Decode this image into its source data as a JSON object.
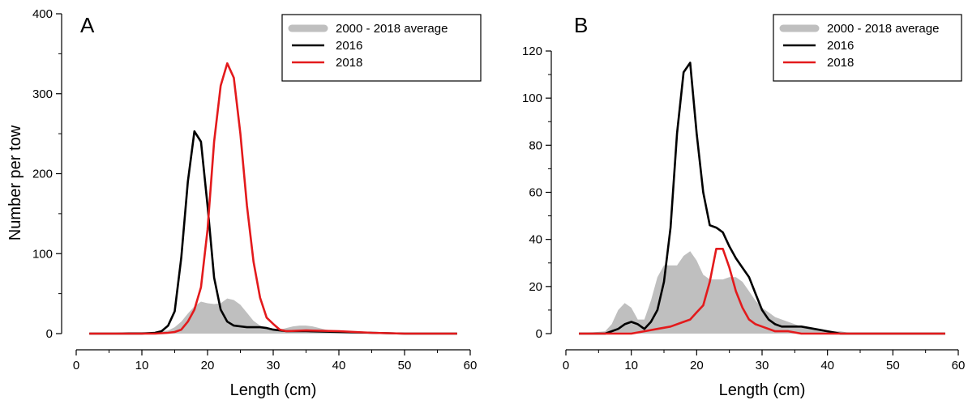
{
  "chart_data": [
    {
      "type": "area",
      "panel_label": "A",
      "xlabel": "Length (cm)",
      "ylabel": "Number per tow",
      "xlim": [
        0,
        60
      ],
      "ylim": [
        0,
        400
      ],
      "xticks": [
        0,
        10,
        20,
        30,
        40,
        50,
        60
      ],
      "yticks": [
        0,
        100,
        200,
        300,
        400
      ],
      "legend_position": "top-right",
      "series": [
        {
          "name": "2000 - 2018 average",
          "kind": "area",
          "color": "#bfbfbf",
          "x": [
            2,
            6,
            8,
            10,
            12,
            14,
            15,
            16,
            17,
            18,
            19,
            20,
            21,
            22,
            23,
            24,
            25,
            26,
            27,
            28,
            29,
            30,
            31,
            32,
            33,
            34,
            35,
            36,
            37,
            38,
            40,
            42,
            44,
            46,
            50,
            58
          ],
          "y": [
            0,
            1,
            2,
            2,
            2,
            4,
            8,
            15,
            25,
            34,
            40,
            38,
            37,
            38,
            44,
            42,
            36,
            26,
            16,
            10,
            6,
            4,
            5,
            7,
            9,
            10,
            10,
            9,
            7,
            5,
            3,
            2,
            1,
            0,
            0,
            0
          ]
        },
        {
          "name": "2016",
          "kind": "line",
          "color": "#000000",
          "x": [
            2,
            10,
            12,
            13,
            14,
            15,
            16,
            17,
            18,
            19,
            20,
            21,
            22,
            23,
            24,
            25,
            26,
            27,
            28,
            29,
            30,
            32,
            35,
            40,
            45,
            50,
            58
          ],
          "y": [
            0,
            0,
            1,
            3,
            10,
            28,
            95,
            190,
            253,
            240,
            160,
            70,
            30,
            15,
            10,
            9,
            8,
            8,
            8,
            7,
            5,
            3,
            3,
            2,
            1,
            0,
            0
          ]
        },
        {
          "name": "2018",
          "kind": "line",
          "color": "#e31a1c",
          "x": [
            2,
            12,
            14,
            15,
            16,
            17,
            18,
            19,
            20,
            21,
            22,
            23,
            24,
            25,
            26,
            27,
            28,
            29,
            30,
            31,
            32,
            35,
            40,
            45,
            50,
            58
          ],
          "y": [
            0,
            0,
            1,
            2,
            5,
            15,
            30,
            58,
            130,
            240,
            310,
            338,
            320,
            250,
            160,
            90,
            45,
            20,
            12,
            5,
            3,
            4,
            3,
            1,
            0,
            0
          ]
        }
      ]
    },
    {
      "type": "area",
      "panel_label": "B",
      "xlabel": "Length (cm)",
      "ylabel": "",
      "xlim": [
        0,
        60
      ],
      "ylim": [
        0,
        135
      ],
      "xticks": [
        0,
        10,
        20,
        30,
        40,
        50,
        60
      ],
      "yticks": [
        0,
        20,
        40,
        60,
        80,
        100,
        120
      ],
      "legend_position": "top-right",
      "series": [
        {
          "name": "2000 - 2018 average",
          "kind": "area",
          "color": "#bfbfbf",
          "x": [
            2,
            6,
            7,
            8,
            9,
            10,
            11,
            12,
            13,
            14,
            15,
            16,
            17,
            18,
            19,
            20,
            21,
            22,
            23,
            24,
            25,
            26,
            27,
            28,
            29,
            30,
            31,
            32,
            34,
            36,
            38,
            40,
            42,
            44,
            46,
            50,
            58
          ],
          "y": [
            0,
            1,
            4,
            10,
            13,
            11,
            6,
            6,
            14,
            24,
            29,
            29,
            29,
            33,
            35,
            31,
            25,
            23,
            23,
            23,
            24,
            24,
            22,
            18,
            14,
            11,
            9,
            7,
            5,
            3,
            2,
            1,
            1,
            0,
            0,
            0,
            0
          ]
        },
        {
          "name": "2016",
          "kind": "line",
          "color": "#000000",
          "x": [
            2,
            6,
            7,
            8,
            9,
            10,
            11,
            12,
            13,
            14,
            15,
            16,
            17,
            18,
            19,
            20,
            21,
            22,
            23,
            24,
            25,
            26,
            27,
            28,
            29,
            30,
            31,
            32,
            33,
            34,
            35,
            36,
            38,
            40,
            42,
            45,
            50,
            58
          ],
          "y": [
            0,
            0,
            1,
            2,
            4,
            5,
            4,
            2,
            5,
            10,
            22,
            45,
            85,
            111,
            115,
            85,
            60,
            46,
            45,
            43,
            37,
            32,
            28,
            24,
            17,
            10,
            6,
            4,
            3,
            3,
            3,
            3,
            2,
            1,
            0,
            0,
            0,
            0
          ]
        },
        {
          "name": "2018",
          "kind": "line",
          "color": "#e31a1c",
          "x": [
            2,
            10,
            12,
            14,
            16,
            18,
            19,
            20,
            21,
            22,
            23,
            24,
            25,
            26,
            27,
            28,
            29,
            30,
            32,
            34,
            36,
            40,
            45,
            50,
            58
          ],
          "y": [
            0,
            0,
            1,
            2,
            3,
            5,
            6,
            9,
            12,
            22,
            36,
            36,
            28,
            18,
            11,
            6,
            4,
            3,
            1,
            1,
            0,
            0,
            0,
            0,
            0
          ]
        }
      ]
    }
  ]
}
